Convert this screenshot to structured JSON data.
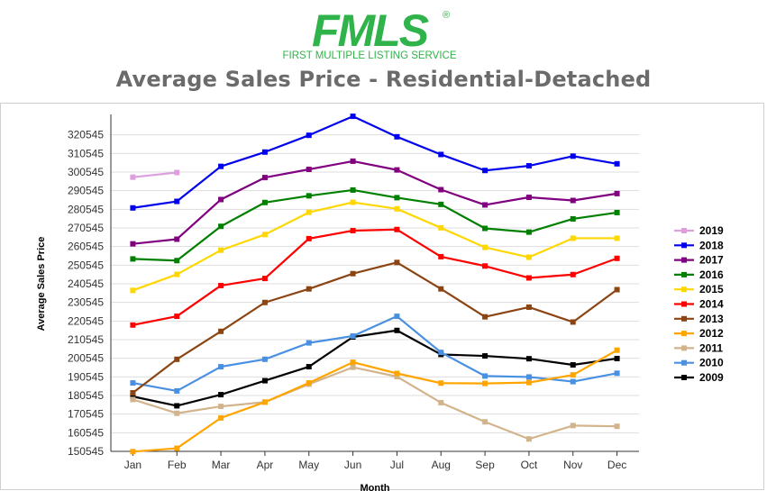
{
  "logo": {
    "wordmark": "FMLS",
    "tagline": "FIRST MULTIPLE LISTING SERVICE",
    "registered_mark": "®",
    "color": "#2fb34a"
  },
  "colors": {
    "title": "#6b6b6b",
    "grid": "#dddddd",
    "axis": "#333333"
  },
  "chart_data": {
    "type": "line",
    "title": "Average Sales Price - Residential-Detached",
    "xlabel": "Month",
    "ylabel": "Average Sales Price",
    "categories": [
      "Jan",
      "Feb",
      "Mar",
      "Apr",
      "May",
      "Jun",
      "Jul",
      "Aug",
      "Sep",
      "Oct",
      "Nov",
      "Dec"
    ],
    "yticks": [
      150545,
      160545,
      170545,
      180545,
      190545,
      200545,
      210545,
      220545,
      230545,
      240545,
      250545,
      260545,
      270545,
      280545,
      290545,
      300545,
      310545,
      320545
    ],
    "ylim": [
      150545,
      330545
    ],
    "grid": true,
    "legend_position": "right",
    "series": [
      {
        "name": "2019",
        "color": "#dda0dd",
        "values": [
          297800,
          300300,
          null,
          null,
          null,
          null,
          null,
          null,
          null,
          null,
          null,
          null
        ]
      },
      {
        "name": "2018",
        "color": "#0000ee",
        "values": [
          281300,
          284800,
          303600,
          311300,
          320300,
          330500,
          319500,
          310000,
          301400,
          303900,
          309100,
          305000
        ]
      },
      {
        "name": "2017",
        "color": "#800080",
        "values": [
          262000,
          264500,
          285800,
          297600,
          302000,
          306400,
          301700,
          291100,
          282900,
          287000,
          285300,
          289000
        ]
      },
      {
        "name": "2016",
        "color": "#008000",
        "values": [
          253900,
          253000,
          271400,
          284200,
          287800,
          290900,
          286800,
          283200,
          270300,
          268300,
          275400,
          278800
        ]
      },
      {
        "name": "2015",
        "color": "#ffd700",
        "values": [
          237000,
          245600,
          258600,
          267000,
          278900,
          284300,
          280800,
          270600,
          260100,
          254800,
          265000,
          265000
        ]
      },
      {
        "name": "2014",
        "color": "#ff0000",
        "values": [
          218400,
          223100,
          239600,
          243400,
          264800,
          269100,
          269700,
          255100,
          250100,
          243700,
          245500,
          254200
        ]
      },
      {
        "name": "2013",
        "color": "#8b4513",
        "values": [
          182000,
          200000,
          215000,
          230500,
          237800,
          246000,
          252000,
          237800,
          222800,
          228000,
          220000,
          237400
        ]
      },
      {
        "name": "2012",
        "color": "#ffa500",
        "values": [
          150400,
          152200,
          168500,
          177000,
          187300,
          198400,
          192400,
          187200,
          187000,
          187500,
          191600,
          204900
        ]
      },
      {
        "name": "2011",
        "color": "#d2b48c",
        "values": [
          178400,
          171000,
          174700,
          177000,
          186600,
          195700,
          190700,
          176700,
          166400,
          157200,
          164400,
          164000
        ]
      },
      {
        "name": "2010",
        "color": "#4a90e2",
        "values": [
          187300,
          183000,
          196000,
          200000,
          208800,
          212500,
          223100,
          203700,
          191000,
          190500,
          188000,
          192500
        ]
      },
      {
        "name": "2009",
        "color": "#000000",
        "values": [
          180000,
          175000,
          181000,
          188500,
          196000,
          212000,
          215500,
          202600,
          201800,
          200300,
          197000,
          200400
        ]
      }
    ]
  }
}
